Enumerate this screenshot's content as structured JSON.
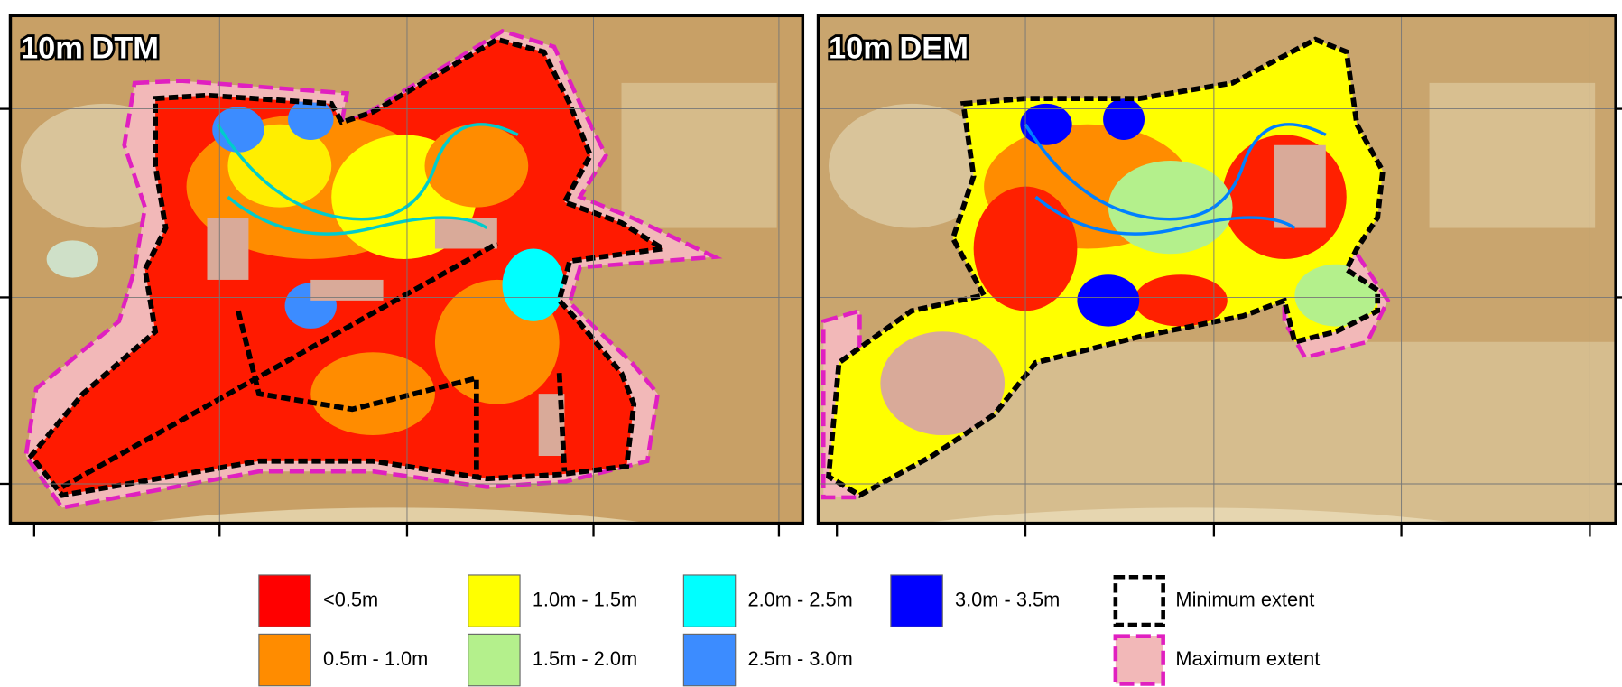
{
  "panels": [
    {
      "title": "10m DTM"
    },
    {
      "title": "10m DEM"
    }
  ],
  "legend": [
    {
      "label": "<0.5m",
      "color": "#ff0000"
    },
    {
      "label": "0.5m - 1.0m",
      "color": "#ff8c00"
    },
    {
      "label": "1.0m - 1.5m",
      "color": "#ffff00"
    },
    {
      "label": "1.5m - 2.0m",
      "color": "#b4f08c"
    },
    {
      "label": "2.0m - 2.5m",
      "color": "#00ffff"
    },
    {
      "label": "2.5m - 3.0m",
      "color": "#3c8cff"
    },
    {
      "label": "3.0m - 3.5m",
      "color": "#0000ff"
    },
    {
      "label": "Minimum extent",
      "style": "min"
    },
    {
      "label": "Maximum extent",
      "style": "max"
    }
  ]
}
